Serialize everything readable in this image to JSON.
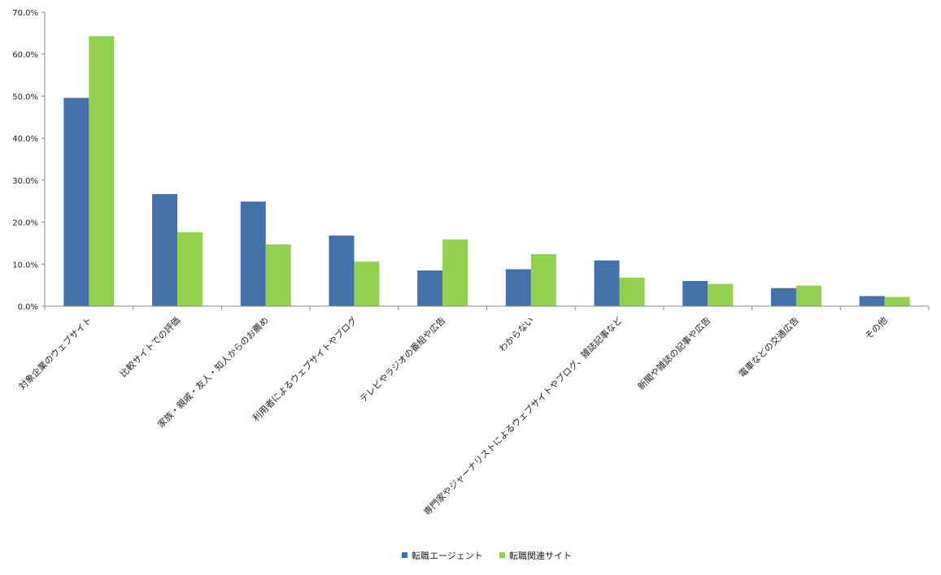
{
  "chart_data": {
    "type": "bar",
    "categories": [
      "対象企業のウェブサイト",
      "比較サイトでの評価",
      "家族・親戚・友人・知人からのお薦め",
      "利用者によるウェブサイトやブログ",
      "テレビやラジオの番組や広告",
      "わからない",
      "専門家やジャーナリストによるウェブサイトやブログ、雑誌記事など",
      "新聞や雑誌の記事や広告",
      "電車などの交通広告",
      "その他"
    ],
    "series": [
      {
        "name": "転職エージェント",
        "color": "#4472a8",
        "values": [
          49.6,
          26.7,
          24.9,
          16.8,
          8.5,
          8.8,
          10.9,
          6.0,
          4.3,
          2.4
        ]
      },
      {
        "name": "転職関連サイト",
        "color": "#92d050",
        "values": [
          64.3,
          17.6,
          14.7,
          10.6,
          15.9,
          12.4,
          6.8,
          5.3,
          4.9,
          2.2
        ]
      }
    ],
    "ylim": [
      0,
      70
    ],
    "yticks": [
      0,
      10,
      20,
      30,
      40,
      50,
      60,
      70
    ],
    "ytick_labels": [
      "0.0%",
      "10.0%",
      "20.0%",
      "30.0%",
      "40.0%",
      "50.0%",
      "60.0%",
      "70.0%"
    ],
    "grid": false,
    "legend_position": "bottom-center"
  }
}
